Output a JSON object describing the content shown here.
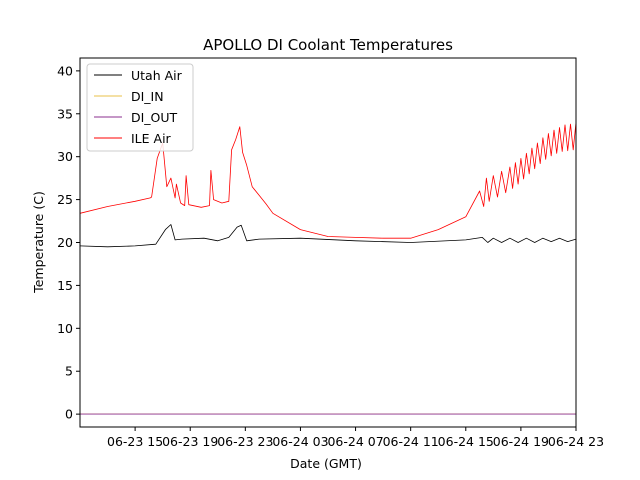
{
  "chart_data": {
    "type": "line",
    "title": "APOLLO DI Coolant Temperatures",
    "xlabel": "Date (GMT)",
    "ylabel": "Temperature (C)",
    "x_unit": "hours since 06-23 11:00 GMT",
    "xlim": [
      0,
      36
    ],
    "ylim": [
      -1.5,
      41.5
    ],
    "grid": false,
    "legend_position": "upper-left",
    "x_ticks": [
      {
        "value": 4,
        "label": "06-23 15"
      },
      {
        "value": 8,
        "label": "06-23 19"
      },
      {
        "value": 12,
        "label": "06-23 23"
      },
      {
        "value": 16,
        "label": "06-24 03"
      },
      {
        "value": 20,
        "label": "06-24 07"
      },
      {
        "value": 24,
        "label": "06-24 11"
      },
      {
        "value": 28,
        "label": "06-24 15"
      },
      {
        "value": 32,
        "label": "06-24 19"
      },
      {
        "value": 36,
        "label": "06-24 23"
      }
    ],
    "y_ticks": [
      0,
      5,
      10,
      15,
      20,
      25,
      30,
      35,
      40
    ],
    "series": [
      {
        "name": "Utah Air",
        "color": "#000000",
        "x": [
          0,
          2,
          4,
          5.5,
          6.2,
          6.6,
          6.9,
          7.4,
          9,
          10,
          10.8,
          11.4,
          11.7,
          12.1,
          13,
          16,
          20,
          24,
          28,
          29.2,
          29.6,
          30,
          30.6,
          31.2,
          31.8,
          32.4,
          33,
          33.6,
          34.2,
          34.8,
          35.4,
          36
        ],
        "y": [
          19.6,
          19.5,
          19.6,
          19.8,
          21.5,
          22.1,
          20.3,
          20.4,
          20.5,
          20.2,
          20.6,
          21.8,
          22.0,
          20.2,
          20.4,
          20.5,
          20.2,
          20.0,
          20.3,
          20.6,
          20.0,
          20.5,
          20.0,
          20.5,
          20.0,
          20.5,
          20.0,
          20.5,
          20.1,
          20.5,
          20.1,
          20.4
        ]
      },
      {
        "name": "DI_IN",
        "color": "#e8c04a",
        "x": [
          0,
          36
        ],
        "y": [
          0,
          0
        ]
      },
      {
        "name": "DI_OUT",
        "color": "#8b2f8f",
        "x": [
          0,
          36
        ],
        "y": [
          0,
          0
        ]
      },
      {
        "name": "ILE Air",
        "color": "#ff0000",
        "x": [
          0,
          2,
          4,
          5.1,
          5.2,
          5.6,
          6.0,
          6.3,
          6.6,
          6.9,
          7.0,
          7.3,
          7.6,
          7.7,
          7.9,
          8.8,
          9.4,
          9.5,
          9.7,
          10.3,
          10.8,
          11.0,
          11.3,
          11.6,
          11.8,
          12.1,
          12.5,
          13.0,
          13.5,
          14.0,
          16,
          18,
          20,
          22,
          24,
          26,
          28,
          29.0,
          29.3,
          29.5,
          29.7,
          30.0,
          30.3,
          30.6,
          30.9,
          31.2,
          31.4,
          31.6,
          31.8,
          32.0,
          32.2,
          32.4,
          32.6,
          32.8,
          33.0,
          33.2,
          33.4,
          33.6,
          33.8,
          34.0,
          34.2,
          34.4,
          34.6,
          34.8,
          35.0,
          35.2,
          35.4,
          35.6,
          35.8,
          36.0
        ],
        "y": [
          23.4,
          24.2,
          24.8,
          25.2,
          25.3,
          29.8,
          31.6,
          26.5,
          27.5,
          25.2,
          26.8,
          24.6,
          24.3,
          27.8,
          24.4,
          24.1,
          24.3,
          28.4,
          25.0,
          24.6,
          24.8,
          30.8,
          32.0,
          33.5,
          30.5,
          29.0,
          26.5,
          25.5,
          24.5,
          23.4,
          21.5,
          20.7,
          20.6,
          20.5,
          20.5,
          21.5,
          23.0,
          26.0,
          24.2,
          27.5,
          24.8,
          27.8,
          25.3,
          28.3,
          25.8,
          28.8,
          26.3,
          29.3,
          26.8,
          29.8,
          27.4,
          30.4,
          28.0,
          31.0,
          28.6,
          31.6,
          29.2,
          32.2,
          29.7,
          32.7,
          30.1,
          33.1,
          30.4,
          33.4,
          30.6,
          33.7,
          30.7,
          33.8,
          30.8,
          34.0
        ]
      }
    ]
  }
}
